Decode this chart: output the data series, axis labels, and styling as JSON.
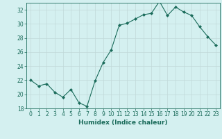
{
  "x": [
    0,
    1,
    2,
    3,
    4,
    5,
    6,
    7,
    8,
    9,
    10,
    11,
    12,
    13,
    14,
    15,
    16,
    17,
    18,
    19,
    20,
    21,
    22,
    23
  ],
  "y": [
    22.0,
    21.2,
    21.5,
    20.3,
    19.6,
    20.7,
    18.8,
    18.3,
    21.9,
    24.5,
    26.3,
    29.8,
    30.1,
    30.7,
    31.3,
    31.5,
    33.2,
    31.2,
    32.4,
    31.7,
    31.2,
    29.6,
    28.2,
    27.0
  ],
  "line_color": "#1a6b5a",
  "marker": "D",
  "marker_size": 2,
  "bg_color": "#d4f0f0",
  "grid_color": "#c0d8d8",
  "xlabel": "Humidex (Indice chaleur)",
  "xlim": [
    -0.5,
    23.5
  ],
  "ylim": [
    18,
    33
  ],
  "yticks": [
    18,
    20,
    22,
    24,
    26,
    28,
    30,
    32
  ],
  "xticks": [
    0,
    1,
    2,
    3,
    4,
    5,
    6,
    7,
    8,
    9,
    10,
    11,
    12,
    13,
    14,
    15,
    16,
    17,
    18,
    19,
    20,
    21,
    22,
    23
  ],
  "tick_fontsize": 5.5,
  "label_fontsize": 6.5
}
